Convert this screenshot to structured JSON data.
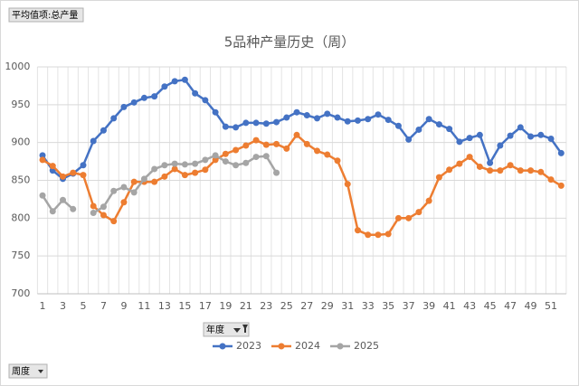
{
  "chart_data": {
    "type": "line",
    "title": "5品种产量历史（周）",
    "value_field": "平均值项:总产量",
    "legend_field": "年度",
    "axis_field": "周度",
    "categories": [
      1,
      null,
      3,
      null,
      5,
      null,
      7,
      null,
      9,
      null,
      11,
      null,
      13,
      null,
      15,
      null,
      17,
      null,
      19,
      null,
      21,
      null,
      23,
      null,
      25,
      null,
      27,
      null,
      29,
      null,
      31,
      null,
      33,
      null,
      35,
      null,
      37,
      null,
      39,
      null,
      41,
      null,
      43,
      null,
      45,
      null,
      47,
      null,
      49,
      null,
      51,
      null
    ],
    "series": [
      {
        "name": "2023",
        "color": "#4472c4",
        "values": [
          883,
          863,
          852,
          859,
          870,
          902,
          916,
          932,
          947,
          953,
          959,
          961,
          974,
          981,
          983,
          965,
          956,
          940,
          921,
          920,
          926,
          926,
          925,
          927,
          933,
          940,
          936,
          932,
          938,
          933,
          928,
          929,
          931,
          937,
          930,
          922,
          904,
          917,
          931,
          924,
          918,
          901,
          906,
          910,
          873,
          896,
          909,
          920,
          908,
          910,
          905,
          886
        ]
      },
      {
        "name": "2024",
        "color": "#ed7d31",
        "values": [
          877,
          869,
          855,
          860,
          857,
          816,
          804,
          796,
          821,
          848,
          848,
          848,
          855,
          865,
          857,
          860,
          864,
          877,
          885,
          890,
          896,
          903,
          897,
          898,
          892,
          910,
          898,
          889,
          884,
          876,
          845,
          784,
          778,
          778,
          779,
          800,
          800,
          808,
          823,
          854,
          864,
          872,
          881,
          868,
          863,
          863,
          870,
          863,
          863,
          861,
          851,
          843
        ]
      },
      {
        "name": "2025",
        "color": "#a5a5a5",
        "values": [
          830,
          809,
          824,
          812,
          null,
          807,
          815,
          836,
          841,
          834,
          852,
          865,
          870,
          872,
          871,
          872,
          877,
          883,
          875,
          870,
          873,
          881,
          882,
          860,
          null,
          null,
          null,
          null,
          null,
          null,
          null,
          null,
          null,
          null,
          null,
          null,
          null,
          null,
          null,
          null,
          null,
          null,
          null,
          null,
          null,
          null,
          null,
          null,
          null,
          null,
          null,
          null
        ]
      }
    ],
    "ylim": [
      700,
      1000
    ],
    "yticks": [
      700,
      750,
      800,
      850,
      900,
      950,
      1000
    ],
    "grid": true,
    "legend": "bottom"
  }
}
